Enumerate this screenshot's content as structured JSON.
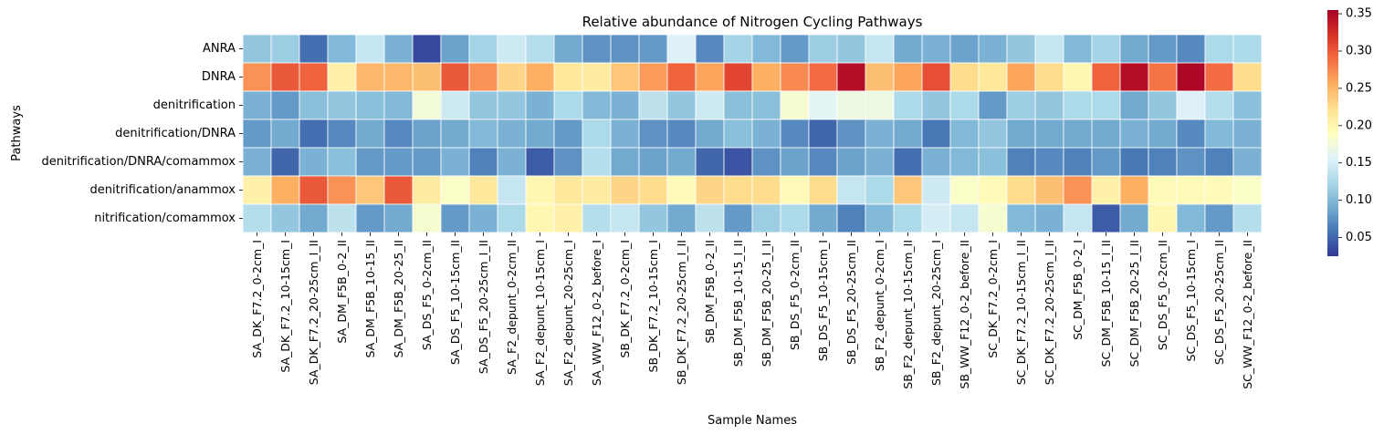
{
  "chart_data": {
    "type": "heatmap",
    "title": "Relative abundance of Nitrogen Cycling Pathways",
    "xlabel": "Sample Names",
    "ylabel": "Pathways",
    "colormap": "RdYlBu_r",
    "colormap_stops": [
      "#313695",
      "#4575b4",
      "#74add1",
      "#abd9e9",
      "#e0f3f8",
      "#ffffbf",
      "#fee090",
      "#fdae61",
      "#f46d43",
      "#d73027",
      "#a50026"
    ],
    "vmin": 0.025,
    "vmax": 0.355,
    "colorbar_ticks": [
      0.05,
      0.1,
      0.15,
      0.2,
      0.25,
      0.3,
      0.35
    ],
    "colorbar_tick_labels": [
      "0.05",
      "0.10",
      "0.15",
      "0.20",
      "0.25",
      "0.30",
      "0.35"
    ],
    "rows": [
      "ANRA",
      "DNRA",
      "denitrification",
      "denitrification/DNRA",
      "denitrification/DNRA/comammox",
      "denitrification/anammox",
      "nitrification/comammox"
    ],
    "columns": [
      "SA_DK_F7.2_0-2cm_I",
      "SA_DK_F7.2_10-15cm_I",
      "SA_DK_F7.2_20-25cm_I_II",
      "SA_DM_F5B_0-2_II",
      "SA_DM_F5B_10-15_II",
      "SA_DM_F5B_20-25_II",
      "SA_DS_F5_0-2cm_II",
      "SA_DS_F5_10-15cm_II",
      "SA_DS_F5_20-25cm_I_II",
      "SA_F2_depunt_0-2cm_II",
      "SA_F2_depunt_10-15cm_I",
      "SA_F2_depunt_20-25cm_I",
      "SA_WW_F12_0-2_before_I",
      "SB_DK_F7.2_0-2cm_I",
      "SB_DK_F7.2_10-15cm_I",
      "SB_DK_F7.2_20-25cm_I_II",
      "SB_DM_F5B_0-2_II",
      "SB_DM_F5B_10-15_I_II",
      "SB_DM_F5B_20-25_I_II",
      "SB_DS_F5_0-2cm_II",
      "SB_DS_F5_10-15cm_I",
      "SB_DS_F5_20-25cm_II",
      "SB_F2_depunt_0-2cm_I",
      "SB_F2_depunt_10-15cm_II",
      "SB_F2_depunt_20-25cm_I",
      "SB_WW_F12_0-2_before_II",
      "SC_DK_F7.2_0-2cm_I",
      "SC_DK_F7.2_10-15cm_I_II",
      "SC_DK_F7.2_20-25cm_I_II",
      "SC_DM_F5B_0-2_I",
      "SC_DM_F5B_10-15_I_II",
      "SC_DM_F5B_20-25_I_II",
      "SC_DS_F5_0-2cm_II",
      "SC_DS_F5_10-15cm_I",
      "SC_DS_F5_20-25cm_II",
      "SC_WW_F12_0-2_before_II"
    ],
    "values": [
      [
        0.11,
        0.115,
        0.055,
        0.1,
        0.14,
        0.095,
        0.035,
        0.085,
        0.12,
        0.145,
        0.13,
        0.09,
        0.075,
        0.075,
        0.08,
        0.155,
        0.07,
        0.12,
        0.1,
        0.08,
        0.115,
        0.11,
        0.14,
        0.09,
        0.095,
        0.085,
        0.095,
        0.11,
        0.14,
        0.1,
        0.12,
        0.09,
        0.08,
        0.07,
        0.125,
        0.125
      ],
      [
        0.27,
        0.3,
        0.295,
        0.205,
        0.25,
        0.25,
        0.245,
        0.3,
        0.27,
        0.23,
        0.255,
        0.215,
        0.21,
        0.24,
        0.265,
        0.295,
        0.26,
        0.31,
        0.255,
        0.275,
        0.29,
        0.345,
        0.245,
        0.26,
        0.305,
        0.225,
        0.215,
        0.26,
        0.225,
        0.2,
        0.295,
        0.345,
        0.285,
        0.35,
        0.29,
        0.225
      ],
      [
        0.095,
        0.08,
        0.105,
        0.11,
        0.105,
        0.1,
        0.175,
        0.145,
        0.11,
        0.11,
        0.095,
        0.125,
        0.1,
        0.095,
        0.135,
        0.11,
        0.145,
        0.105,
        0.105,
        0.18,
        0.16,
        0.17,
        0.17,
        0.125,
        0.11,
        0.125,
        0.08,
        0.115,
        0.11,
        0.125,
        0.125,
        0.09,
        0.11,
        0.155,
        0.13,
        0.105
      ],
      [
        0.08,
        0.09,
        0.055,
        0.07,
        0.09,
        0.07,
        0.085,
        0.09,
        0.1,
        0.095,
        0.09,
        0.08,
        0.125,
        0.095,
        0.075,
        0.07,
        0.09,
        0.105,
        0.095,
        0.07,
        0.05,
        0.075,
        0.095,
        0.09,
        0.06,
        0.1,
        0.11,
        0.09,
        0.09,
        0.09,
        0.09,
        0.095,
        0.09,
        0.07,
        0.1,
        0.095
      ],
      [
        0.095,
        0.05,
        0.095,
        0.105,
        0.08,
        0.08,
        0.08,
        0.095,
        0.065,
        0.095,
        0.045,
        0.075,
        0.13,
        0.09,
        0.085,
        0.09,
        0.05,
        0.04,
        0.075,
        0.085,
        0.07,
        0.085,
        0.095,
        0.055,
        0.095,
        0.1,
        0.105,
        0.065,
        0.07,
        0.065,
        0.08,
        0.06,
        0.065,
        0.075,
        0.065,
        0.095
      ],
      [
        0.205,
        0.255,
        0.3,
        0.27,
        0.24,
        0.3,
        0.21,
        0.185,
        0.215,
        0.14,
        0.2,
        0.215,
        0.21,
        0.23,
        0.225,
        0.195,
        0.23,
        0.225,
        0.225,
        0.195,
        0.225,
        0.14,
        0.125,
        0.24,
        0.145,
        0.185,
        0.195,
        0.225,
        0.245,
        0.27,
        0.205,
        0.255,
        0.195,
        0.195,
        0.195,
        0.185
      ],
      [
        0.13,
        0.11,
        0.09,
        0.135,
        0.08,
        0.09,
        0.18,
        0.08,
        0.095,
        0.125,
        0.2,
        0.205,
        0.13,
        0.14,
        0.11,
        0.09,
        0.135,
        0.08,
        0.115,
        0.125,
        0.09,
        0.065,
        0.1,
        0.125,
        0.15,
        0.14,
        0.18,
        0.1,
        0.095,
        0.14,
        0.045,
        0.09,
        0.2,
        0.1,
        0.08,
        0.13
      ]
    ]
  }
}
